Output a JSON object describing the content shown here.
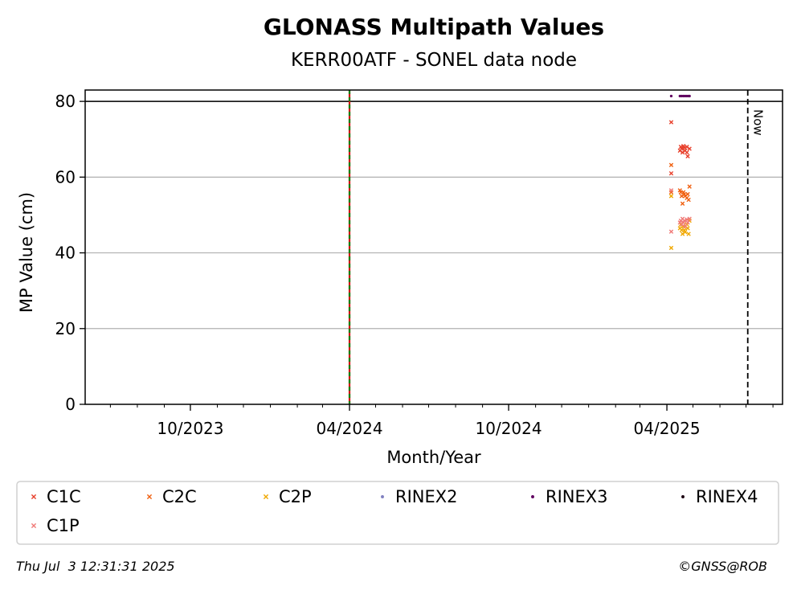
{
  "chart_data": {
    "type": "scatter",
    "title": "GLONASS Multipath Values",
    "subtitle": "KERR00ATF - SONEL data node",
    "xlabel": "Month/Year",
    "ylabel": "MP Value (cm)",
    "xlim": [
      "2023-06-02",
      "2025-08-12"
    ],
    "ylim": [
      0,
      83
    ],
    "yticks": [
      0,
      20,
      40,
      60,
      80
    ],
    "xticks": [
      {
        "date": "2023-10-01",
        "label": "10/2023"
      },
      {
        "date": "2024-04-01",
        "label": "04/2024"
      },
      {
        "date": "2024-10-01",
        "label": "10/2024"
      },
      {
        "date": "2025-04-01",
        "label": "04/2025"
      }
    ],
    "grid": "horizontal",
    "threshold_line": 80,
    "vertical_markers": [
      {
        "date": "2024-04-01",
        "style": "red-green-dashed"
      },
      {
        "date": "2025-07-03",
        "style": "black-dashed",
        "label": "Now"
      }
    ],
    "legend_position": "below",
    "series": [
      {
        "name": "C1C",
        "marker": "x",
        "color": "#e8402c",
        "points": [
          [
            "2025-04-06",
            74.5
          ],
          [
            "2025-04-06",
            61
          ],
          [
            "2025-04-16",
            67
          ],
          [
            "2025-04-17",
            68
          ],
          [
            "2025-04-18",
            67.5
          ],
          [
            "2025-04-19",
            66.5
          ],
          [
            "2025-04-20",
            68.2
          ],
          [
            "2025-04-21",
            67.8
          ],
          [
            "2025-04-22",
            67
          ],
          [
            "2025-04-24",
            66.5
          ],
          [
            "2025-04-24",
            68
          ],
          [
            "2025-04-25",
            65.5
          ],
          [
            "2025-04-27",
            67.5
          ]
        ]
      },
      {
        "name": "C2C",
        "marker": "x",
        "color": "#f06010",
        "points": [
          [
            "2025-04-06",
            63.2
          ],
          [
            "2025-04-06",
            56
          ],
          [
            "2025-04-16",
            56.5
          ],
          [
            "2025-04-17",
            56
          ],
          [
            "2025-04-18",
            55
          ],
          [
            "2025-04-19",
            53
          ],
          [
            "2025-04-20",
            56
          ],
          [
            "2025-04-21",
            55.5
          ],
          [
            "2025-04-22",
            55
          ],
          [
            "2025-04-24",
            54.5
          ],
          [
            "2025-04-25",
            55.5
          ],
          [
            "2025-04-26",
            54
          ],
          [
            "2025-04-27",
            57.5
          ]
        ]
      },
      {
        "name": "C2P",
        "marker": "x",
        "color": "#f0a800",
        "points": [
          [
            "2025-04-06",
            55
          ],
          [
            "2025-04-06",
            41.3
          ],
          [
            "2025-04-16",
            46.5
          ],
          [
            "2025-04-17",
            47.5
          ],
          [
            "2025-04-18",
            46
          ],
          [
            "2025-04-19",
            45
          ],
          [
            "2025-04-20",
            47
          ],
          [
            "2025-04-21",
            46
          ],
          [
            "2025-04-22",
            45.5
          ],
          [
            "2025-04-24",
            47.5
          ],
          [
            "2025-04-25",
            46.5
          ],
          [
            "2025-04-26",
            45
          ],
          [
            "2025-04-27",
            48.5
          ]
        ]
      },
      {
        "name": "RINEX2",
        "marker": "dot",
        "color": "#8080c0",
        "points": []
      },
      {
        "name": "RINEX3",
        "marker": "dot",
        "color": "#600060",
        "points": [
          [
            "2025-04-06",
            81.4
          ],
          [
            "2025-04-16",
            81.4
          ],
          [
            "2025-04-18",
            81.4
          ],
          [
            "2025-04-20",
            81.4
          ],
          [
            "2025-04-22",
            81.4
          ],
          [
            "2025-04-24",
            81.4
          ],
          [
            "2025-04-26",
            81.4
          ],
          [
            "2025-04-27",
            81.4
          ]
        ]
      },
      {
        "name": "RINEX4",
        "marker": "dot",
        "color": "#1a0010",
        "points": []
      },
      {
        "name": "C1P",
        "marker": "x",
        "color": "#f07a78",
        "points": [
          [
            "2025-04-06",
            56.5
          ],
          [
            "2025-04-06",
            45.6
          ],
          [
            "2025-04-16",
            48
          ],
          [
            "2025-04-17",
            48.5
          ],
          [
            "2025-04-18",
            47.5
          ],
          [
            "2025-04-19",
            49
          ],
          [
            "2025-04-20",
            48
          ],
          [
            "2025-04-21",
            48.5
          ],
          [
            "2025-04-22",
            47
          ],
          [
            "2025-04-24",
            48.8
          ],
          [
            "2025-04-25",
            48
          ],
          [
            "2025-04-27",
            49
          ]
        ]
      }
    ]
  },
  "footer": {
    "timestamp": "Thu Jul  3 12:31:31 2025",
    "copyright": "©GNSS@ROB"
  }
}
